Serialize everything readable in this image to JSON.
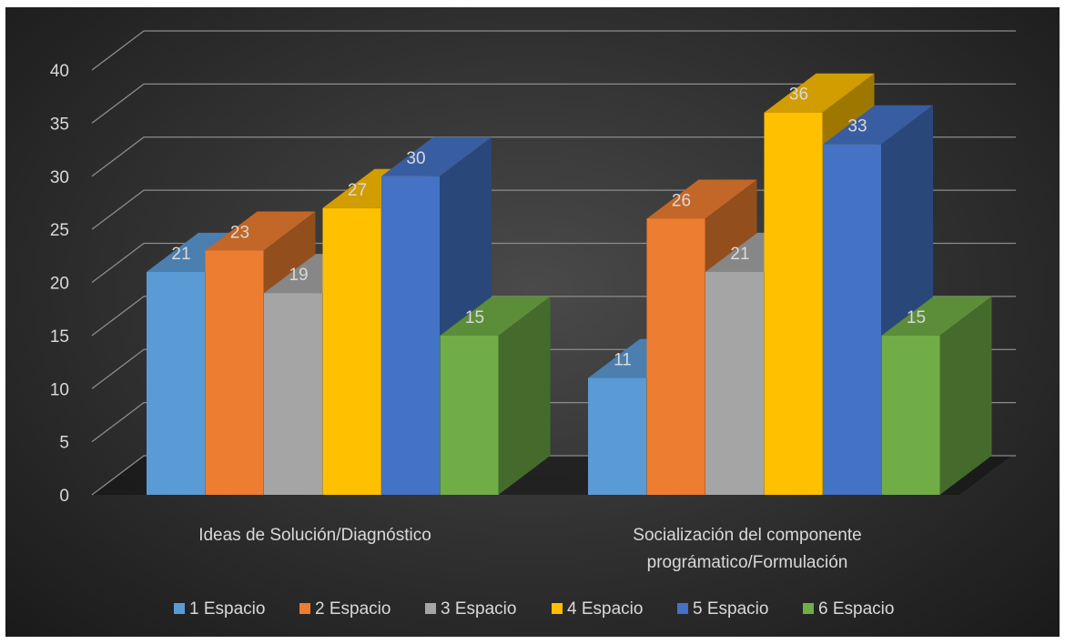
{
  "chart_data": {
    "type": "bar",
    "categories": [
      [
        "Ideas de Solución/Diagnóstico"
      ],
      [
        "Socialización del componente",
        "prográmatico/Formulación"
      ]
    ],
    "series": [
      {
        "name": "1 Espacio",
        "values": [
          21,
          11
        ],
        "color": "#5b9bd5"
      },
      {
        "name": "2 Espacio",
        "values": [
          23,
          26
        ],
        "color": "#ed7d31"
      },
      {
        "name": "3 Espacio",
        "values": [
          19,
          21
        ],
        "color": "#a5a5a5"
      },
      {
        "name": "4 Espacio",
        "values": [
          27,
          36
        ],
        "color": "#ffc000"
      },
      {
        "name": "5 Espacio",
        "values": [
          30,
          33
        ],
        "color": "#4472c4"
      },
      {
        "name": "6 Espacio",
        "values": [
          15,
          15
        ],
        "color": "#70ad47"
      }
    ],
    "yticks": [
      0,
      5,
      10,
      15,
      20,
      25,
      30,
      35,
      40
    ],
    "ylim": [
      0,
      40
    ],
    "grid": true,
    "legend": "bottom",
    "style": "3d-clustered-column"
  }
}
